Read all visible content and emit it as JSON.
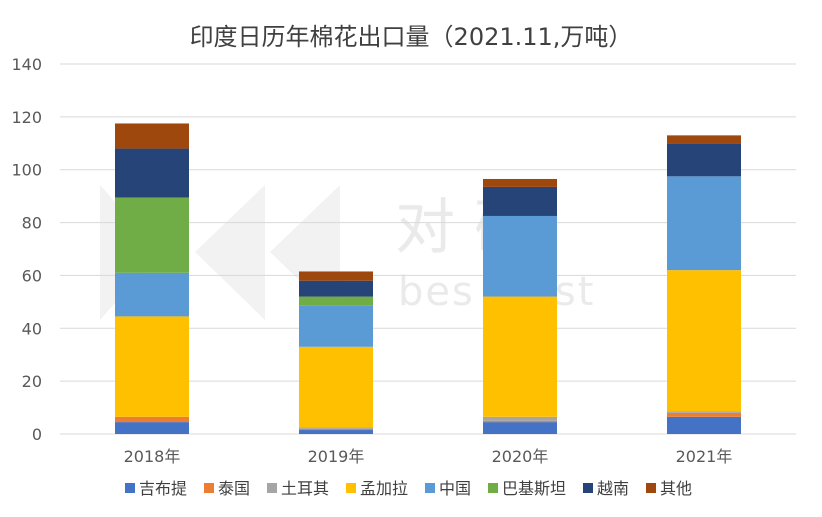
{
  "watermark": {
    "cn": "对 研",
    "en": "bes  alyst"
  },
  "chart_data": {
    "type": "bar",
    "stacked": true,
    "title": "印度日历年棉花出口量（2021.11,万吨）",
    "xlabel": "",
    "ylabel": "",
    "ylim": [
      0,
      140
    ],
    "yticks": [
      0,
      20,
      40,
      60,
      80,
      100,
      120,
      140
    ],
    "grid": true,
    "legend_position": "bottom",
    "categories": [
      "2018年",
      "2019年",
      "2020年",
      "2021年"
    ],
    "series": [
      {
        "name": "吉布提",
        "color": "#4472C4",
        "values": [
          4.5,
          1.5,
          4.5,
          6.5
        ]
      },
      {
        "name": "泰国",
        "color": "#ED7D31",
        "values": [
          2.0,
          0.5,
          0.5,
          1.5
        ]
      },
      {
        "name": "土耳其",
        "color": "#A5A5A5",
        "values": [
          0.0,
          0.5,
          1.5,
          0.5
        ]
      },
      {
        "name": "孟加拉",
        "color": "#FFC000",
        "values": [
          38.0,
          30.5,
          45.5,
          53.5
        ]
      },
      {
        "name": "中国",
        "color": "#5B9BD5",
        "values": [
          16.5,
          15.5,
          30.5,
          35.5
        ]
      },
      {
        "name": "巴基斯坦",
        "color": "#70AD47",
        "values": [
          28.5,
          3.5,
          0.0,
          0.0
        ]
      },
      {
        "name": "越南",
        "color": "#264478",
        "values": [
          18.5,
          6.0,
          11.0,
          12.5
        ]
      },
      {
        "name": "其他",
        "color": "#9E480E",
        "values": [
          9.5,
          3.5,
          3.0,
          3.0
        ]
      }
    ]
  }
}
